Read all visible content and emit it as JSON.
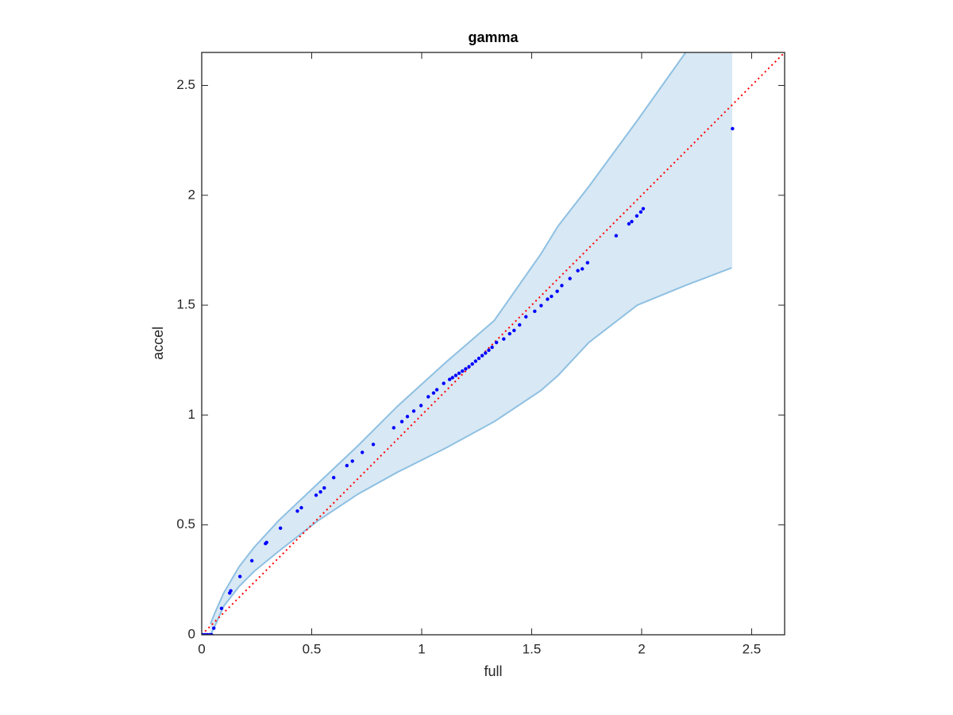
{
  "chart_data": {
    "type": "scatter",
    "title": "gamma",
    "x_label": "full",
    "y_label": "accel",
    "xlim": [
      0,
      2.65
    ],
    "ylim": [
      0,
      2.65
    ],
    "xticks": [
      0,
      0.5,
      1,
      1.5,
      2,
      2.5
    ],
    "yticks": [
      0,
      0.5,
      1,
      1.5,
      2,
      2.5
    ],
    "series": [
      {
        "color": "#0000ff",
        "x": [
          0.005,
          0.015,
          0.025,
          0.035,
          0.045,
          0.055,
          0.09,
          0.127,
          0.132,
          0.174,
          0.228,
          0.29,
          0.295,
          0.358,
          0.435,
          0.453,
          0.52,
          0.54,
          0.557,
          0.6,
          0.66,
          0.685,
          0.73,
          0.78,
          0.873,
          0.91,
          0.935,
          0.964,
          0.997,
          1.03,
          1.054,
          1.069,
          1.1,
          1.127,
          1.14,
          1.155,
          1.17,
          1.185,
          1.2,
          1.215,
          1.23,
          1.245,
          1.26,
          1.275,
          1.29,
          1.305,
          1.32,
          1.34,
          1.373,
          1.4,
          1.42,
          1.445,
          1.474,
          1.514,
          1.543,
          1.572,
          1.59,
          1.616,
          1.637,
          1.674,
          1.71,
          1.73,
          1.754,
          1.884,
          1.942,
          1.955,
          1.978,
          1.996,
          2.007,
          2.413
        ],
        "values": [
          0,
          0,
          0,
          0,
          0,
          0.03,
          0.12,
          0.19,
          0.2,
          0.265,
          0.337,
          0.415,
          0.42,
          0.485,
          0.563,
          0.578,
          0.635,
          0.65,
          0.668,
          0.715,
          0.77,
          0.79,
          0.83,
          0.866,
          0.942,
          0.97,
          0.993,
          1.018,
          1.043,
          1.083,
          1.1,
          1.115,
          1.144,
          1.162,
          1.17,
          1.18,
          1.19,
          1.2,
          1.21,
          1.22,
          1.232,
          1.245,
          1.258,
          1.27,
          1.282,
          1.295,
          1.308,
          1.33,
          1.346,
          1.37,
          1.385,
          1.41,
          1.447,
          1.472,
          1.498,
          1.527,
          1.54,
          1.563,
          1.589,
          1.621,
          1.657,
          1.665,
          1.693,
          1.816,
          1.87,
          1.88,
          1.906,
          1.924,
          1.939,
          2.303
        ]
      }
    ],
    "band": {
      "fill": "#d8e8f4",
      "edge_color": "#8ec0e2",
      "x": [
        0.04,
        0.06,
        0.1,
        0.17,
        0.24,
        0.35,
        0.53,
        0.71,
        0.89,
        1.11,
        1.33,
        1.54,
        1.62,
        1.76,
        1.98,
        2.2,
        2.41
      ],
      "upper": [
        0.05,
        0.1,
        0.19,
        0.31,
        0.4,
        0.52,
        0.69,
        0.86,
        1.04,
        1.24,
        1.43,
        1.73,
        1.86,
        2.04,
        2.34,
        2.65,
        2.95
      ],
      "lower": [
        0,
        0.04,
        0.13,
        0.22,
        0.29,
        0.38,
        0.52,
        0.64,
        0.74,
        0.85,
        0.97,
        1.11,
        1.18,
        1.33,
        1.5,
        1.59,
        1.67
      ]
    },
    "reference_line": {
      "color": "#ff0000",
      "x": [
        0,
        2.65
      ],
      "y": [
        0,
        2.65
      ]
    }
  }
}
